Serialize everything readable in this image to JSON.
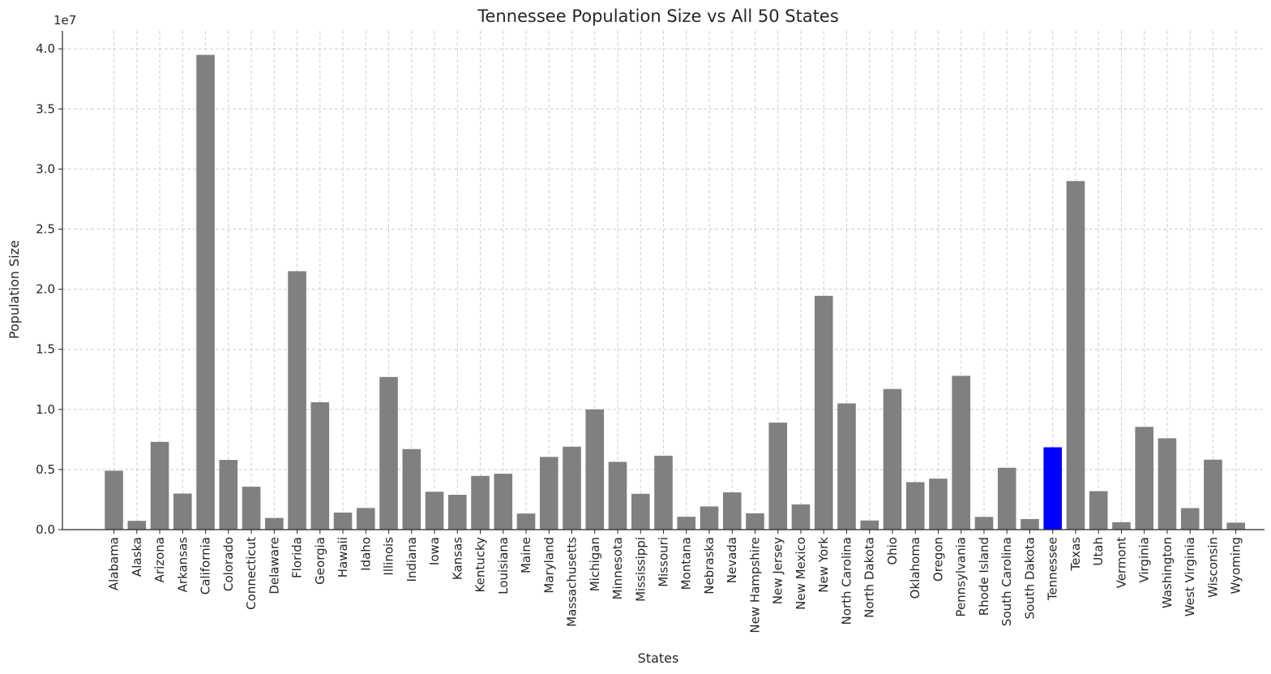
{
  "chart_data": {
    "type": "bar",
    "title": "Tennessee Population Size vs All 50 States",
    "xlabel": "States",
    "ylabel": "Population Size",
    "y_scale_label": "1e7",
    "ylim": [
      0,
      41500000
    ],
    "y_ticks": [
      {
        "value": 0,
        "label": "0.0"
      },
      {
        "value": 5000000,
        "label": "0.5"
      },
      {
        "value": 10000000,
        "label": "1.0"
      },
      {
        "value": 15000000,
        "label": "1.5"
      },
      {
        "value": 20000000,
        "label": "2.0"
      },
      {
        "value": 25000000,
        "label": "2.5"
      },
      {
        "value": 30000000,
        "label": "3.0"
      },
      {
        "value": 35000000,
        "label": "3.5"
      },
      {
        "value": 40000000,
        "label": "4.0"
      }
    ],
    "grid": true,
    "default_color": "#808080",
    "highlight_color": "#0000ff",
    "highlight_category": "Tennessee",
    "categories": [
      "Alabama",
      "Alaska",
      "Arizona",
      "Arkansas",
      "California",
      "Colorado",
      "Connecticut",
      "Delaware",
      "Florida",
      "Georgia",
      "Hawaii",
      "Idaho",
      "Illinois",
      "Indiana",
      "Iowa",
      "Kansas",
      "Kentucky",
      "Louisiana",
      "Maine",
      "Maryland",
      "Massachusetts",
      "Michigan",
      "Minnesota",
      "Mississippi",
      "Missouri",
      "Montana",
      "Nebraska",
      "Nevada",
      "New Hampshire",
      "New Jersey",
      "New Mexico",
      "New York",
      "North Carolina",
      "North Dakota",
      "Ohio",
      "Oklahoma",
      "Oregon",
      "Pennsylvania",
      "Rhode Island",
      "South Carolina",
      "South Dakota",
      "Tennessee",
      "Texas",
      "Utah",
      "Vermont",
      "Virginia",
      "Washington",
      "West Virginia",
      "Wisconsin",
      "Wyoming"
    ],
    "values": [
      4900000,
      730000,
      7300000,
      3000000,
      39500000,
      5800000,
      3570000,
      970000,
      21500000,
      10600000,
      1420000,
      1800000,
      12700000,
      6700000,
      3150000,
      2900000,
      4470000,
      4650000,
      1340000,
      6050000,
      6900000,
      10000000,
      5640000,
      2980000,
      6150000,
      1070000,
      1930000,
      3100000,
      1360000,
      8900000,
      2100000,
      19450000,
      10500000,
      760000,
      11700000,
      3950000,
      4240000,
      12800000,
      1060000,
      5150000,
      880000,
      6850000,
      29000000,
      3200000,
      620000,
      8550000,
      7600000,
      1790000,
      5820000,
      580000
    ]
  }
}
